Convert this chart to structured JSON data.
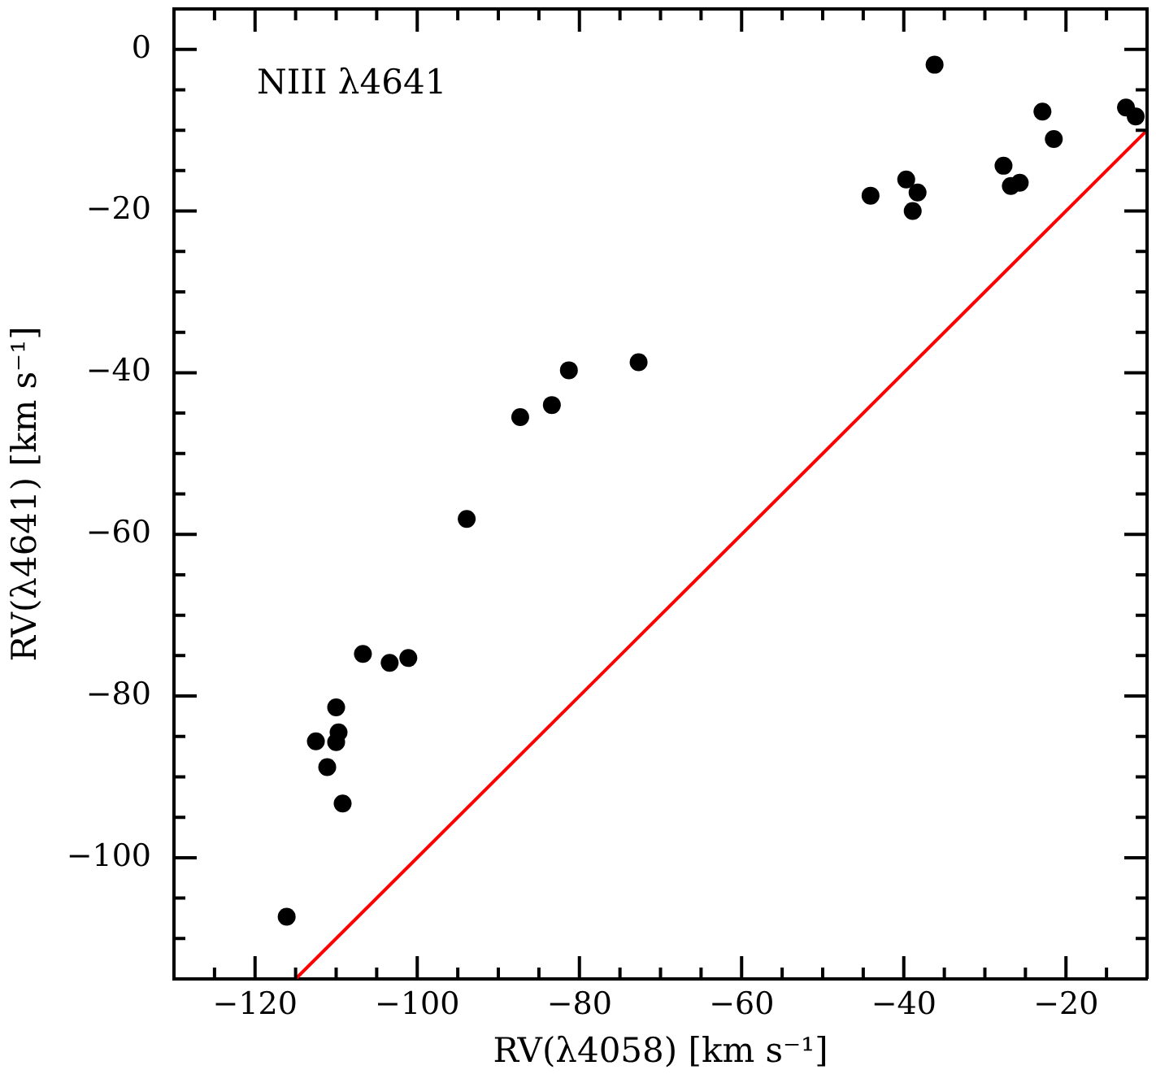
{
  "chart_data": {
    "type": "scatter",
    "xlabel": "RV(λ4058) [km s⁻¹]",
    "ylabel": "RV(λ4641) [km s⁻¹]",
    "annotations": [
      "NIII λ4641"
    ],
    "xlim": [
      -130,
      -10
    ],
    "ylim": [
      -115,
      5
    ],
    "xticks": [
      {
        "value": -125,
        "label": null
      },
      {
        "value": -120,
        "label": "−120"
      },
      {
        "value": -115,
        "label": null
      },
      {
        "value": -110,
        "label": null
      },
      {
        "value": -105,
        "label": null
      },
      {
        "value": -100,
        "label": "−100"
      },
      {
        "value": -95,
        "label": null
      },
      {
        "value": -90,
        "label": null
      },
      {
        "value": -85,
        "label": null
      },
      {
        "value": -80,
        "label": "−80"
      },
      {
        "value": -75,
        "label": null
      },
      {
        "value": -70,
        "label": null
      },
      {
        "value": -65,
        "label": null
      },
      {
        "value": -60,
        "label": "−60"
      },
      {
        "value": -55,
        "label": null
      },
      {
        "value": -50,
        "label": null
      },
      {
        "value": -45,
        "label": null
      },
      {
        "value": -40,
        "label": "−40"
      },
      {
        "value": -35,
        "label": null
      },
      {
        "value": -30,
        "label": null
      },
      {
        "value": -25,
        "label": null
      },
      {
        "value": -20,
        "label": "−20"
      },
      {
        "value": -15,
        "label": null
      }
    ],
    "yticks": [
      {
        "value": -110,
        "label": null
      },
      {
        "value": -105,
        "label": null
      },
      {
        "value": -100,
        "label": "−100"
      },
      {
        "value": -95,
        "label": null
      },
      {
        "value": -90,
        "label": null
      },
      {
        "value": -85,
        "label": null
      },
      {
        "value": -80,
        "label": "−80"
      },
      {
        "value": -75,
        "label": null
      },
      {
        "value": -70,
        "label": null
      },
      {
        "value": -65,
        "label": null
      },
      {
        "value": -60,
        "label": "−60"
      },
      {
        "value": -55,
        "label": null
      },
      {
        "value": -50,
        "label": null
      },
      {
        "value": -45,
        "label": null
      },
      {
        "value": -40,
        "label": "−40"
      },
      {
        "value": -35,
        "label": null
      },
      {
        "value": -30,
        "label": null
      },
      {
        "value": -25,
        "label": null
      },
      {
        "value": -20,
        "label": "−20"
      },
      {
        "value": -15,
        "label": null
      },
      {
        "value": -10,
        "label": null
      },
      {
        "value": -5,
        "label": null
      },
      0
    ],
    "grid": false,
    "legend": false,
    "marker": "circle",
    "series": [
      {
        "color": "#000000",
        "x": [
          -93.9,
          -87.3,
          -83.4,
          -81.3,
          -72.7,
          -36.2,
          -44.1,
          -39.7,
          -38.3,
          -38.9,
          -27.7,
          -26.8,
          -25.7,
          -22.9,
          -21.5,
          -12.6,
          -11.4,
          -106.7,
          -103.4,
          -101.1,
          -110.0,
          -109.7,
          -112.5,
          -110.0,
          -111.1,
          -109.2,
          -116.1
        ],
        "values": [
          -58.1,
          -45.5,
          -44.0,
          -39.7,
          -38.7,
          -1.9,
          -18.1,
          -16.1,
          -17.7,
          -20.0,
          -14.4,
          -16.9,
          -16.5,
          -7.7,
          -11.1,
          -7.2,
          -8.3,
          -74.8,
          -75.9,
          -75.3,
          -81.4,
          -84.5,
          -85.6,
          -85.7,
          -88.8,
          -93.3,
          -107.3
        ]
      },
      {
        "type": "line",
        "color": "#ff0000",
        "marker": "none",
        "x": [
          -115,
          -10
        ],
        "values": [
          -115,
          -10
        ]
      }
    ]
  }
}
